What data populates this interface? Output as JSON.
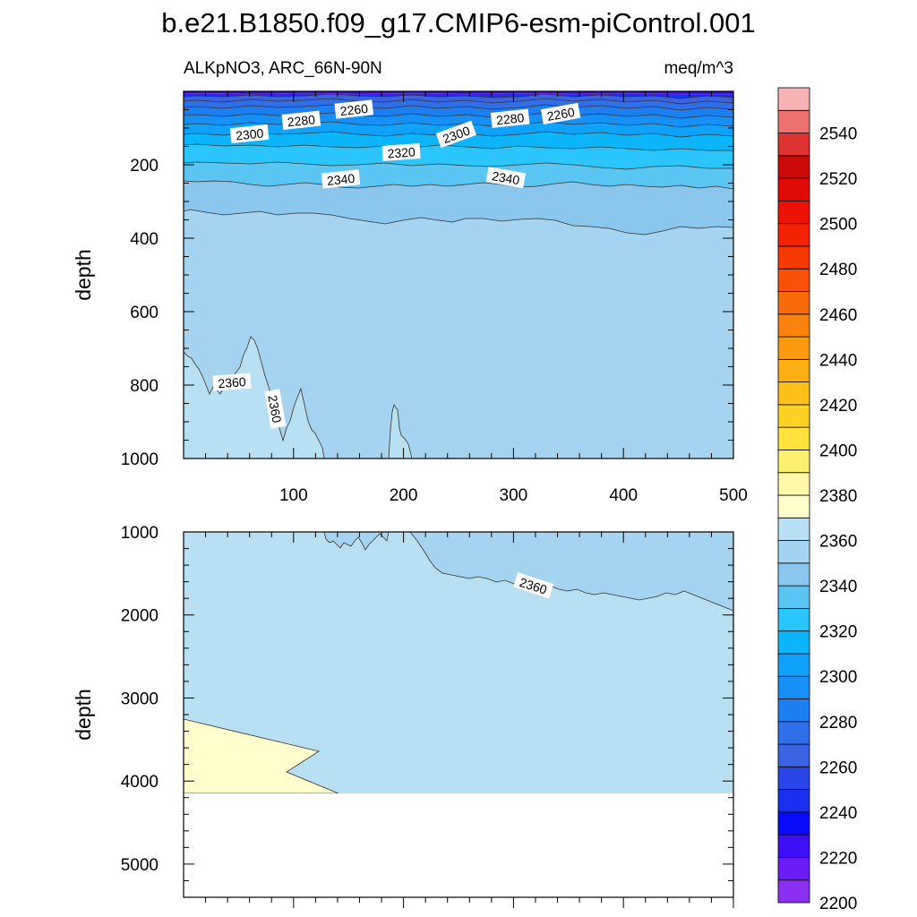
{
  "title": "b.e21.B1850.f09_g17.CMIP6-esm-piControl.001",
  "chart_data": [
    {
      "type": "contour",
      "panel": "top",
      "variable_region": "ALKpNO3, ARC_66N-90N",
      "units": "meq/m^3",
      "ylabel": "depth",
      "xlim": [
        0,
        500
      ],
      "ylim": [
        1000,
        0
      ],
      "x_ticks": [
        100,
        200,
        300,
        400,
        500
      ],
      "y_ticks": [
        200,
        400,
        600,
        800,
        1000
      ],
      "contour_labels": [
        {
          "text": "2260",
          "x": 155,
          "y": 50
        },
        {
          "text": "2280",
          "x": 107,
          "y": 80
        },
        {
          "text": "2300",
          "x": 60,
          "y": 117
        },
        {
          "text": "2280",
          "x": 297,
          "y": 75
        },
        {
          "text": "2260",
          "x": 343,
          "y": 62
        },
        {
          "text": "2300",
          "x": 248,
          "y": 118
        },
        {
          "text": "2320",
          "x": 198,
          "y": 167
        },
        {
          "text": "2340",
          "x": 143,
          "y": 240
        },
        {
          "text": "2340",
          "x": 293,
          "y": 236
        },
        {
          "text": "2360",
          "x": 44,
          "y": 793
        },
        {
          "text": "2360",
          "x": 83,
          "y": 865
        }
      ]
    },
    {
      "type": "contour",
      "panel": "bottom",
      "ylabel": "depth",
      "xlim": [
        0,
        500
      ],
      "ylim": [
        5400,
        1000
      ],
      "y_ticks": [
        1000,
        2000,
        3000,
        4000,
        5000
      ],
      "contour_labels": [
        {
          "text": "2360",
          "x": 318,
          "y": 1650
        }
      ]
    }
  ],
  "colorbar": {
    "levels": [
      2200,
      2210,
      2220,
      2230,
      2240,
      2250,
      2260,
      2270,
      2280,
      2290,
      2300,
      2310,
      2320,
      2330,
      2340,
      2350,
      2360,
      2370,
      2380,
      2390,
      2400,
      2410,
      2420,
      2430,
      2440,
      2450,
      2460,
      2470,
      2480,
      2490,
      2500,
      2510,
      2520,
      2530,
      2540,
      2550
    ],
    "labels": [
      "2200",
      "2220",
      "2240",
      "2260",
      "2280",
      "2300",
      "2320",
      "2340",
      "2360",
      "2380",
      "2400",
      "2420",
      "2440",
      "2460",
      "2480",
      "2500",
      "2520",
      "2540"
    ],
    "colors": [
      "#8b2ff0",
      "#6a1ef5",
      "#3c0ff7",
      "#0a0af7",
      "#1a2ff0",
      "#2a46e8",
      "#3a62e3",
      "#2f6fea",
      "#1e7ff2",
      "#1690f7",
      "#0fa2fa",
      "#0db5fb",
      "#2ac5fb",
      "#5bc6f3",
      "#8bc6ec",
      "#a6d4f0",
      "#b9e0f2",
      "#fffecc",
      "#fff8a6",
      "#fff070",
      "#ffe23c",
      "#fed224",
      "#fdbf1a",
      "#fcaf14",
      "#fb9a0f",
      "#f9830c",
      "#f86b0a",
      "#f75208",
      "#f63a06",
      "#f42204",
      "#ee1204",
      "#e00a06",
      "#cc0a0a",
      "#de3333",
      "#ec7272",
      "#f8b4b4"
    ]
  }
}
